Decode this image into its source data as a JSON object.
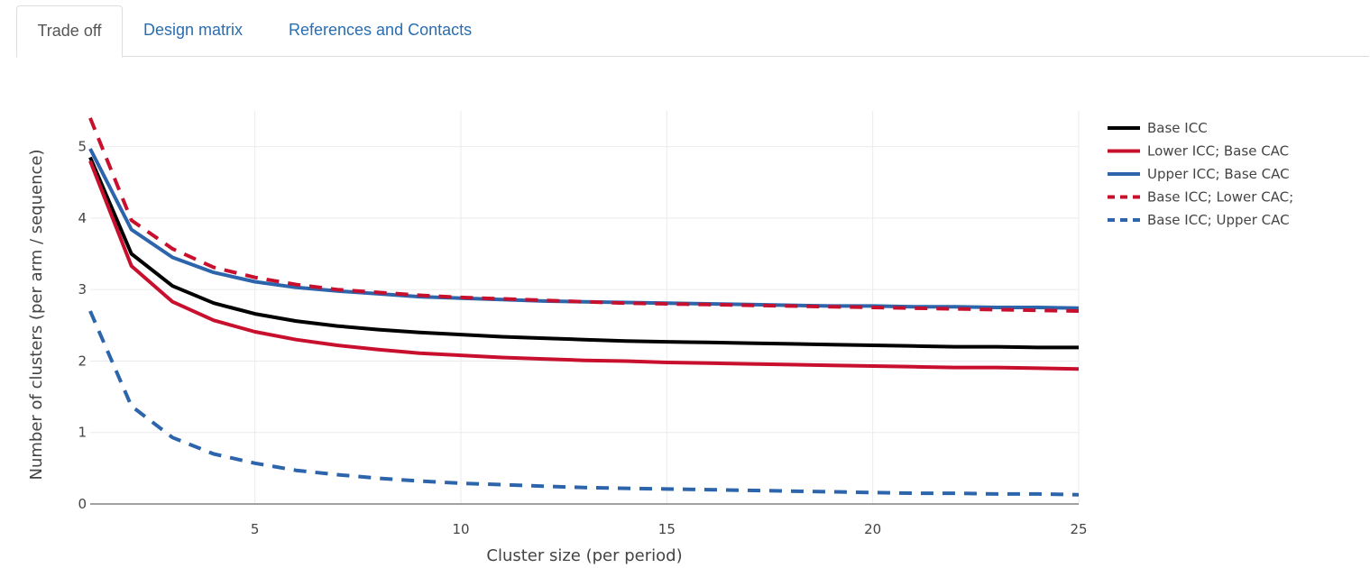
{
  "tabs": [
    "Trade off",
    "Design matrix",
    "References and Contacts"
  ],
  "active_tab": 0,
  "chart_data": {
    "type": "line",
    "title": "",
    "xlabel": "Cluster size (per period)",
    "ylabel": "Number of clusters (per arm / sequence)",
    "xlim": [
      1,
      25
    ],
    "ylim": [
      0,
      5.5
    ],
    "xticks": [
      5,
      10,
      15,
      20,
      25
    ],
    "yticks": [
      0,
      1,
      2,
      3,
      4,
      5
    ],
    "grid": true,
    "legend_position": "right",
    "x": [
      1,
      2,
      3,
      4,
      5,
      6,
      7,
      8,
      9,
      10,
      11,
      12,
      13,
      14,
      15,
      16,
      17,
      18,
      19,
      20,
      21,
      22,
      23,
      24,
      25
    ],
    "series": [
      {
        "name": "Base ICC",
        "color": "#000000",
        "dash": "solid",
        "values": [
          4.85,
          3.5,
          3.05,
          2.81,
          2.66,
          2.56,
          2.49,
          2.44,
          2.4,
          2.37,
          2.34,
          2.32,
          2.3,
          2.28,
          2.27,
          2.26,
          2.25,
          2.24,
          2.23,
          2.22,
          2.21,
          2.2,
          2.2,
          2.19,
          2.19
        ]
      },
      {
        "name": "Lower ICC; Base CAC",
        "color": "#c8102e",
        "dash": "solid",
        "values": [
          4.8,
          3.33,
          2.83,
          2.57,
          2.41,
          2.3,
          2.22,
          2.16,
          2.11,
          2.08,
          2.05,
          2.03,
          2.01,
          2.0,
          1.98,
          1.97,
          1.96,
          1.95,
          1.94,
          1.93,
          1.92,
          1.91,
          1.91,
          1.9,
          1.89
        ]
      },
      {
        "name": "Upper ICC; Base CAC",
        "color": "#2c65ab",
        "dash": "solid",
        "values": [
          4.97,
          3.84,
          3.45,
          3.24,
          3.11,
          3.03,
          2.98,
          2.94,
          2.9,
          2.88,
          2.86,
          2.84,
          2.83,
          2.82,
          2.81,
          2.8,
          2.79,
          2.78,
          2.77,
          2.77,
          2.76,
          2.76,
          2.75,
          2.75,
          2.74
        ]
      },
      {
        "name": "Base ICC; Lower CAC;",
        "color": "#c8102e",
        "dash": "dash",
        "values": [
          5.4,
          3.97,
          3.57,
          3.31,
          3.17,
          3.07,
          3.0,
          2.96,
          2.92,
          2.89,
          2.87,
          2.85,
          2.83,
          2.81,
          2.8,
          2.79,
          2.78,
          2.77,
          2.76,
          2.75,
          2.74,
          2.73,
          2.72,
          2.71,
          2.7
        ]
      },
      {
        "name": "Base ICC; Upper CAC",
        "color": "#2c65ab",
        "dash": "dash",
        "values": [
          2.7,
          1.37,
          0.93,
          0.7,
          0.57,
          0.47,
          0.41,
          0.36,
          0.32,
          0.29,
          0.27,
          0.25,
          0.23,
          0.22,
          0.21,
          0.2,
          0.19,
          0.18,
          0.17,
          0.16,
          0.15,
          0.15,
          0.14,
          0.14,
          0.13
        ]
      }
    ]
  }
}
